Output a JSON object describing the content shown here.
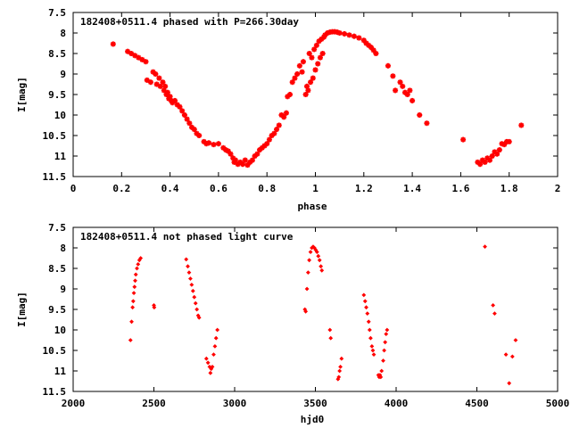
{
  "chart_data": [
    {
      "type": "scatter",
      "title": "182408+0511.4 phased with P=266.30day",
      "xlabel": "phase",
      "ylabel": "I[mag]",
      "xlim": [
        0,
        2
      ],
      "ylim": [
        11.5,
        7.5
      ],
      "y_inverted": true,
      "grid": false,
      "marker_color": "#ff0000",
      "marker": "cross-star",
      "xticks": [
        "0",
        "0.2",
        "0.4",
        "0.6",
        "0.8",
        "1",
        "1.2",
        "1.4",
        "1.6",
        "1.8",
        "2"
      ],
      "xtick_values": [
        0,
        0.2,
        0.4,
        0.6,
        0.8,
        1.0,
        1.2,
        1.4,
        1.6,
        1.8,
        2.0
      ],
      "yticks": [
        "7.5",
        "8",
        "8.5",
        "9",
        "9.5",
        "10",
        "10.5",
        "11",
        "11.5"
      ],
      "ytick_values": [
        7.5,
        8,
        8.5,
        9,
        9.5,
        10,
        10.5,
        11,
        11.5
      ],
      "points": [
        [
          0.165,
          8.27
        ],
        [
          0.225,
          8.45
        ],
        [
          0.24,
          8.5
        ],
        [
          0.255,
          8.55
        ],
        [
          0.27,
          8.6
        ],
        [
          0.285,
          8.65
        ],
        [
          0.3,
          8.7
        ],
        [
          0.305,
          9.15
        ],
        [
          0.32,
          9.2
        ],
        [
          0.33,
          8.95
        ],
        [
          0.34,
          9.0
        ],
        [
          0.345,
          9.25
        ],
        [
          0.355,
          9.1
        ],
        [
          0.36,
          9.3
        ],
        [
          0.37,
          9.2
        ],
        [
          0.375,
          9.4
        ],
        [
          0.38,
          9.3
        ],
        [
          0.385,
          9.5
        ],
        [
          0.39,
          9.45
        ],
        [
          0.395,
          9.6
        ],
        [
          0.4,
          9.55
        ],
        [
          0.405,
          9.65
        ],
        [
          0.41,
          9.7
        ],
        [
          0.42,
          9.65
        ],
        [
          0.43,
          9.75
        ],
        [
          0.44,
          9.8
        ],
        [
          0.45,
          9.9
        ],
        [
          0.46,
          10.0
        ],
        [
          0.47,
          10.1
        ],
        [
          0.48,
          10.2
        ],
        [
          0.49,
          10.3
        ],
        [
          0.5,
          10.35
        ],
        [
          0.51,
          10.45
        ],
        [
          0.52,
          10.5
        ],
        [
          0.54,
          10.65
        ],
        [
          0.55,
          10.7
        ],
        [
          0.56,
          10.68
        ],
        [
          0.58,
          10.72
        ],
        [
          0.6,
          10.7
        ],
        [
          0.62,
          10.8
        ],
        [
          0.63,
          10.85
        ],
        [
          0.64,
          10.88
        ],
        [
          0.65,
          10.95
        ],
        [
          0.66,
          11.05
        ],
        [
          0.665,
          11.15
        ],
        [
          0.67,
          11.1
        ],
        [
          0.68,
          11.2
        ],
        [
          0.69,
          11.15
        ],
        [
          0.7,
          11.2
        ],
        [
          0.71,
          11.1
        ],
        [
          0.72,
          11.22
        ],
        [
          0.73,
          11.15
        ],
        [
          0.74,
          11.1
        ],
        [
          0.75,
          11.0
        ],
        [
          0.76,
          10.95
        ],
        [
          0.77,
          10.85
        ],
        [
          0.78,
          10.8
        ],
        [
          0.79,
          10.75
        ],
        [
          0.8,
          10.7
        ],
        [
          0.81,
          10.6
        ],
        [
          0.82,
          10.5
        ],
        [
          0.83,
          10.45
        ],
        [
          0.84,
          10.35
        ],
        [
          0.85,
          10.25
        ],
        [
          0.86,
          10.0
        ],
        [
          0.87,
          10.05
        ],
        [
          0.88,
          9.95
        ],
        [
          0.885,
          9.55
        ],
        [
          0.895,
          9.5
        ],
        [
          0.905,
          9.2
        ],
        [
          0.915,
          9.1
        ],
        [
          0.925,
          9.0
        ],
        [
          0.935,
          8.8
        ],
        [
          0.945,
          8.95
        ],
        [
          0.95,
          8.7
        ],
        [
          0.96,
          9.5
        ],
        [
          0.965,
          9.3
        ],
        [
          0.97,
          9.4
        ],
        [
          0.975,
          8.5
        ],
        [
          0.98,
          9.2
        ],
        [
          0.985,
          8.6
        ],
        [
          0.99,
          9.1
        ],
        [
          0.995,
          8.4
        ],
        [
          1.0,
          8.9
        ],
        [
          1.005,
          8.3
        ],
        [
          1.01,
          8.75
        ],
        [
          1.015,
          8.2
        ],
        [
          1.02,
          8.6
        ],
        [
          1.025,
          8.15
        ],
        [
          1.03,
          8.5
        ],
        [
          1.035,
          8.1
        ],
        [
          1.04,
          8.05
        ],
        [
          1.05,
          8.0
        ],
        [
          1.06,
          7.98
        ],
        [
          1.07,
          7.97
        ],
        [
          1.08,
          7.97
        ],
        [
          1.09,
          7.98
        ],
        [
          1.1,
          8.0
        ],
        [
          1.12,
          8.02
        ],
        [
          1.14,
          8.05
        ],
        [
          1.16,
          8.08
        ],
        [
          1.18,
          8.12
        ],
        [
          1.2,
          8.18
        ],
        [
          1.21,
          8.25
        ],
        [
          1.22,
          8.3
        ],
        [
          1.23,
          8.35
        ],
        [
          1.24,
          8.42
        ],
        [
          1.25,
          8.5
        ],
        [
          1.3,
          8.8
        ],
        [
          1.32,
          9.05
        ],
        [
          1.33,
          9.4
        ],
        [
          1.35,
          9.2
        ],
        [
          1.36,
          9.3
        ],
        [
          1.37,
          9.45
        ],
        [
          1.38,
          9.5
        ],
        [
          1.39,
          9.4
        ],
        [
          1.4,
          9.65
        ],
        [
          1.43,
          10.0
        ],
        [
          1.46,
          10.2
        ],
        [
          1.61,
          10.6
        ],
        [
          1.67,
          11.15
        ],
        [
          1.68,
          11.2
        ],
        [
          1.69,
          11.1
        ],
        [
          1.7,
          11.15
        ],
        [
          1.71,
          11.05
        ],
        [
          1.72,
          11.1
        ],
        [
          1.73,
          11.0
        ],
        [
          1.74,
          10.9
        ],
        [
          1.75,
          10.95
        ],
        [
          1.76,
          10.85
        ],
        [
          1.77,
          10.7
        ],
        [
          1.78,
          10.72
        ],
        [
          1.79,
          10.65
        ],
        [
          1.8,
          10.65
        ],
        [
          1.85,
          10.25
        ]
      ]
    },
    {
      "type": "scatter",
      "title": "182408+0511.4 not phased light curve",
      "xlabel": "hjd0",
      "ylabel": "I[mag]",
      "xlim": [
        2000,
        5000
      ],
      "ylim": [
        11.5,
        7.5
      ],
      "y_inverted": true,
      "grid": false,
      "marker_color": "#ff0000",
      "marker": "diamond",
      "xticks": [
        "2000",
        "2500",
        "3000",
        "3500",
        "4000",
        "4500",
        "5000"
      ],
      "xtick_values": [
        2000,
        2500,
        3000,
        3500,
        4000,
        4500,
        5000
      ],
      "yticks": [
        "7.5",
        "8",
        "8.5",
        "9",
        "9.5",
        "10",
        "10.5",
        "11",
        "11.5"
      ],
      "ytick_values": [
        7.5,
        8,
        8.5,
        9,
        9.5,
        10,
        10.5,
        11,
        11.5
      ],
      "points": [
        [
          2355,
          10.25
        ],
        [
          2362,
          9.8
        ],
        [
          2368,
          9.45
        ],
        [
          2372,
          9.3
        ],
        [
          2376,
          9.1
        ],
        [
          2380,
          8.95
        ],
        [
          2384,
          8.8
        ],
        [
          2388,
          8.65
        ],
        [
          2395,
          8.5
        ],
        [
          2402,
          8.4
        ],
        [
          2410,
          8.3
        ],
        [
          2418,
          8.25
        ],
        [
          2500,
          9.4
        ],
        [
          2502,
          9.45
        ],
        [
          2700,
          8.28
        ],
        [
          2710,
          8.45
        ],
        [
          2718,
          8.6
        ],
        [
          2726,
          8.75
        ],
        [
          2734,
          8.9
        ],
        [
          2742,
          9.05
        ],
        [
          2750,
          9.2
        ],
        [
          2758,
          9.35
        ],
        [
          2766,
          9.5
        ],
        [
          2774,
          9.65
        ],
        [
          2780,
          9.7
        ],
        [
          2825,
          10.7
        ],
        [
          2835,
          10.8
        ],
        [
          2845,
          10.9
        ],
        [
          2850,
          11.05
        ],
        [
          2855,
          10.95
        ],
        [
          2862,
          10.9
        ],
        [
          2870,
          10.6
        ],
        [
          2878,
          10.4
        ],
        [
          2885,
          10.2
        ],
        [
          2893,
          10.0
        ],
        [
          3435,
          9.5
        ],
        [
          3440,
          9.55
        ],
        [
          3448,
          9.0
        ],
        [
          3455,
          8.6
        ],
        [
          3462,
          8.3
        ],
        [
          3470,
          8.1
        ],
        [
          3478,
          8.0
        ],
        [
          3486,
          7.97
        ],
        [
          3494,
          8.0
        ],
        [
          3502,
          8.05
        ],
        [
          3510,
          8.1
        ],
        [
          3518,
          8.2
        ],
        [
          3526,
          8.3
        ],
        [
          3534,
          8.45
        ],
        [
          3540,
          8.55
        ],
        [
          3590,
          10.0
        ],
        [
          3595,
          10.2
        ],
        [
          3640,
          11.2
        ],
        [
          3645,
          11.15
        ],
        [
          3650,
          11.0
        ],
        [
          3655,
          10.9
        ],
        [
          3662,
          10.7
        ],
        [
          3800,
          9.15
        ],
        [
          3808,
          9.3
        ],
        [
          3815,
          9.45
        ],
        [
          3822,
          9.6
        ],
        [
          3830,
          9.8
        ],
        [
          3836,
          10.0
        ],
        [
          3842,
          10.2
        ],
        [
          3850,
          10.4
        ],
        [
          3856,
          10.5
        ],
        [
          3862,
          10.6
        ],
        [
          3890,
          11.1
        ],
        [
          3895,
          11.15
        ],
        [
          3900,
          11.1
        ],
        [
          3905,
          11.15
        ],
        [
          3910,
          11.0
        ],
        [
          3920,
          10.75
        ],
        [
          3926,
          10.5
        ],
        [
          3932,
          10.3
        ],
        [
          3938,
          10.1
        ],
        [
          3944,
          10.0
        ],
        [
          4550,
          7.97
        ],
        [
          4600,
          9.4
        ],
        [
          4610,
          9.6
        ],
        [
          4680,
          10.6
        ],
        [
          4700,
          11.3
        ],
        [
          4720,
          10.65
        ],
        [
          4740,
          10.25
        ]
      ]
    }
  ]
}
